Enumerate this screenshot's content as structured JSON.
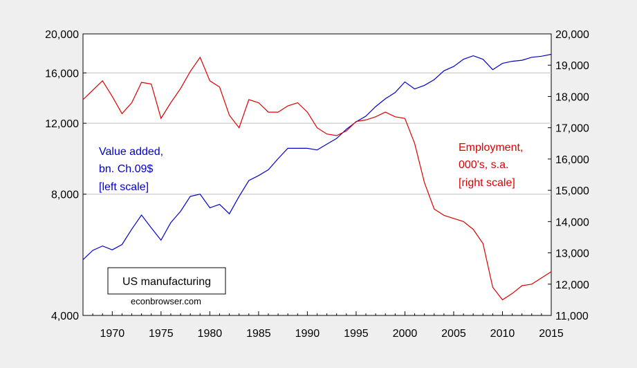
{
  "chart_data": {
    "type": "line",
    "x": [
      1967,
      1968,
      1969,
      1970,
      1971,
      1972,
      1973,
      1974,
      1975,
      1976,
      1977,
      1978,
      1979,
      1980,
      1981,
      1982,
      1983,
      1984,
      1985,
      1986,
      1987,
      1988,
      1989,
      1990,
      1991,
      1992,
      1993,
      1994,
      1995,
      1996,
      1997,
      1998,
      1999,
      2000,
      2001,
      2002,
      2003,
      2004,
      2005,
      2006,
      2007,
      2008,
      2009,
      2010,
      2011,
      2012,
      2013,
      2014,
      2015
    ],
    "xlim": [
      1967,
      2015
    ],
    "x_ticks": [
      "1970",
      "1975",
      "1980",
      "1985",
      "1990",
      "1995",
      "2000",
      "2005",
      "2010",
      "2015"
    ],
    "y_left": {
      "scale": "log",
      "lim": [
        4000,
        20000
      ],
      "ticks": [
        4000,
        8000,
        12000,
        16000,
        20000
      ],
      "tick_labels": [
        "4,000",
        "8,000",
        "12,000",
        "16,000",
        "20,000"
      ]
    },
    "y_right": {
      "scale": "linear",
      "lim": [
        11000,
        20000
      ],
      "ticks": [
        11000,
        12000,
        13000,
        14000,
        15000,
        16000,
        17000,
        18000,
        19000,
        20000
      ],
      "tick_labels": [
        "11,000",
        "12,000",
        "13,000",
        "14,000",
        "15,000",
        "16,000",
        "17,000",
        "18,000",
        "19,000",
        "20,000"
      ]
    },
    "series": [
      {
        "name": "Value added, bn. Ch.09$ [left scale]",
        "axis": "left",
        "color": "#0000cc",
        "values": [
          5500,
          5800,
          5950,
          5820,
          6000,
          6550,
          7100,
          6600,
          6150,
          6800,
          7250,
          7900,
          8000,
          7400,
          7550,
          7150,
          7900,
          8650,
          8900,
          9200,
          9800,
          10400,
          10400,
          10400,
          10300,
          10650,
          11000,
          11600,
          12100,
          12500,
          13200,
          13800,
          14300,
          15200,
          14600,
          14900,
          15400,
          16200,
          16600,
          17300,
          17650,
          17300,
          16300,
          16900,
          17100,
          17200,
          17500,
          17600,
          17800
        ]
      },
      {
        "name": "Employment, 000's, s.a. [right scale]",
        "axis": "right",
        "color": "#dd0000",
        "values": [
          17900,
          18200,
          18500,
          18000,
          17450,
          17800,
          18450,
          18400,
          17300,
          17800,
          18250,
          18800,
          19250,
          18500,
          18300,
          17400,
          17000,
          17900,
          17800,
          17500,
          17500,
          17700,
          17800,
          17500,
          17000,
          16800,
          16750,
          16900,
          17200,
          17250,
          17350,
          17500,
          17350,
          17300,
          16500,
          15250,
          14400,
          14200,
          14100,
          14000,
          13750,
          13300,
          11900,
          11500,
          11700,
          11950,
          12000,
          12200,
          12400
        ]
      }
    ],
    "annotations": {
      "left_label": [
        "Value added,",
        "bn. Ch.09$",
        "[left scale]"
      ],
      "right_label": [
        "Employment,",
        "000's, s.a.",
        "[right scale]"
      ],
      "box_title": "US manufacturing",
      "source": "econbrowser.com"
    },
    "grid": true
  }
}
